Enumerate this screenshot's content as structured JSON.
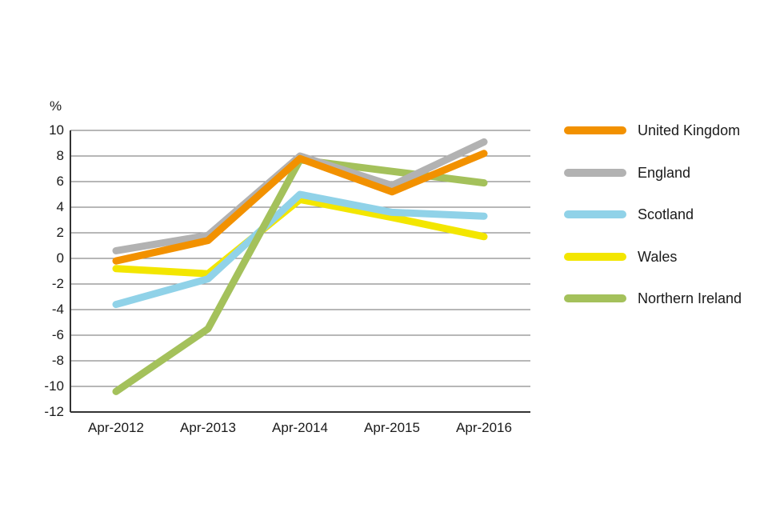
{
  "chart_data": {
    "type": "line",
    "title": "",
    "xlabel": "",
    "ylabel": "%",
    "x_categories": [
      "Apr-2012",
      "Apr-2013",
      "Apr-2014",
      "Apr-2015",
      "Apr-2016"
    ],
    "y_ticks": [
      10,
      8,
      6,
      4,
      2,
      0,
      -2,
      -4,
      -6,
      -8,
      -10,
      -12
    ],
    "ylim": [
      -12,
      10
    ],
    "grid": true,
    "grid_color": "#8C8C8C",
    "axis_color": "#333333",
    "legend_position": "right",
    "series": [
      {
        "name": "United Kingdom",
        "color": "#F29100",
        "values": [
          -0.2,
          1.4,
          7.8,
          5.2,
          8.2
        ]
      },
      {
        "name": "England",
        "color": "#B2B2B2",
        "values": [
          0.6,
          1.8,
          8.0,
          5.7,
          9.1
        ]
      },
      {
        "name": "Scotland",
        "color": "#90D2E8",
        "values": [
          -3.6,
          -1.6,
          5.0,
          3.6,
          3.3
        ]
      },
      {
        "name": "Wales",
        "color": "#F3E600",
        "values": [
          -0.8,
          -1.2,
          4.6,
          3.2,
          1.7
        ]
      },
      {
        "name": "Northern Ireland",
        "color": "#A4C15B",
        "values": [
          -10.4,
          -5.5,
          7.7,
          6.8,
          5.9
        ]
      }
    ],
    "draw_order": [
      "Wales",
      "Scotland",
      "Northern Ireland",
      "England",
      "United Kingdom"
    ]
  }
}
